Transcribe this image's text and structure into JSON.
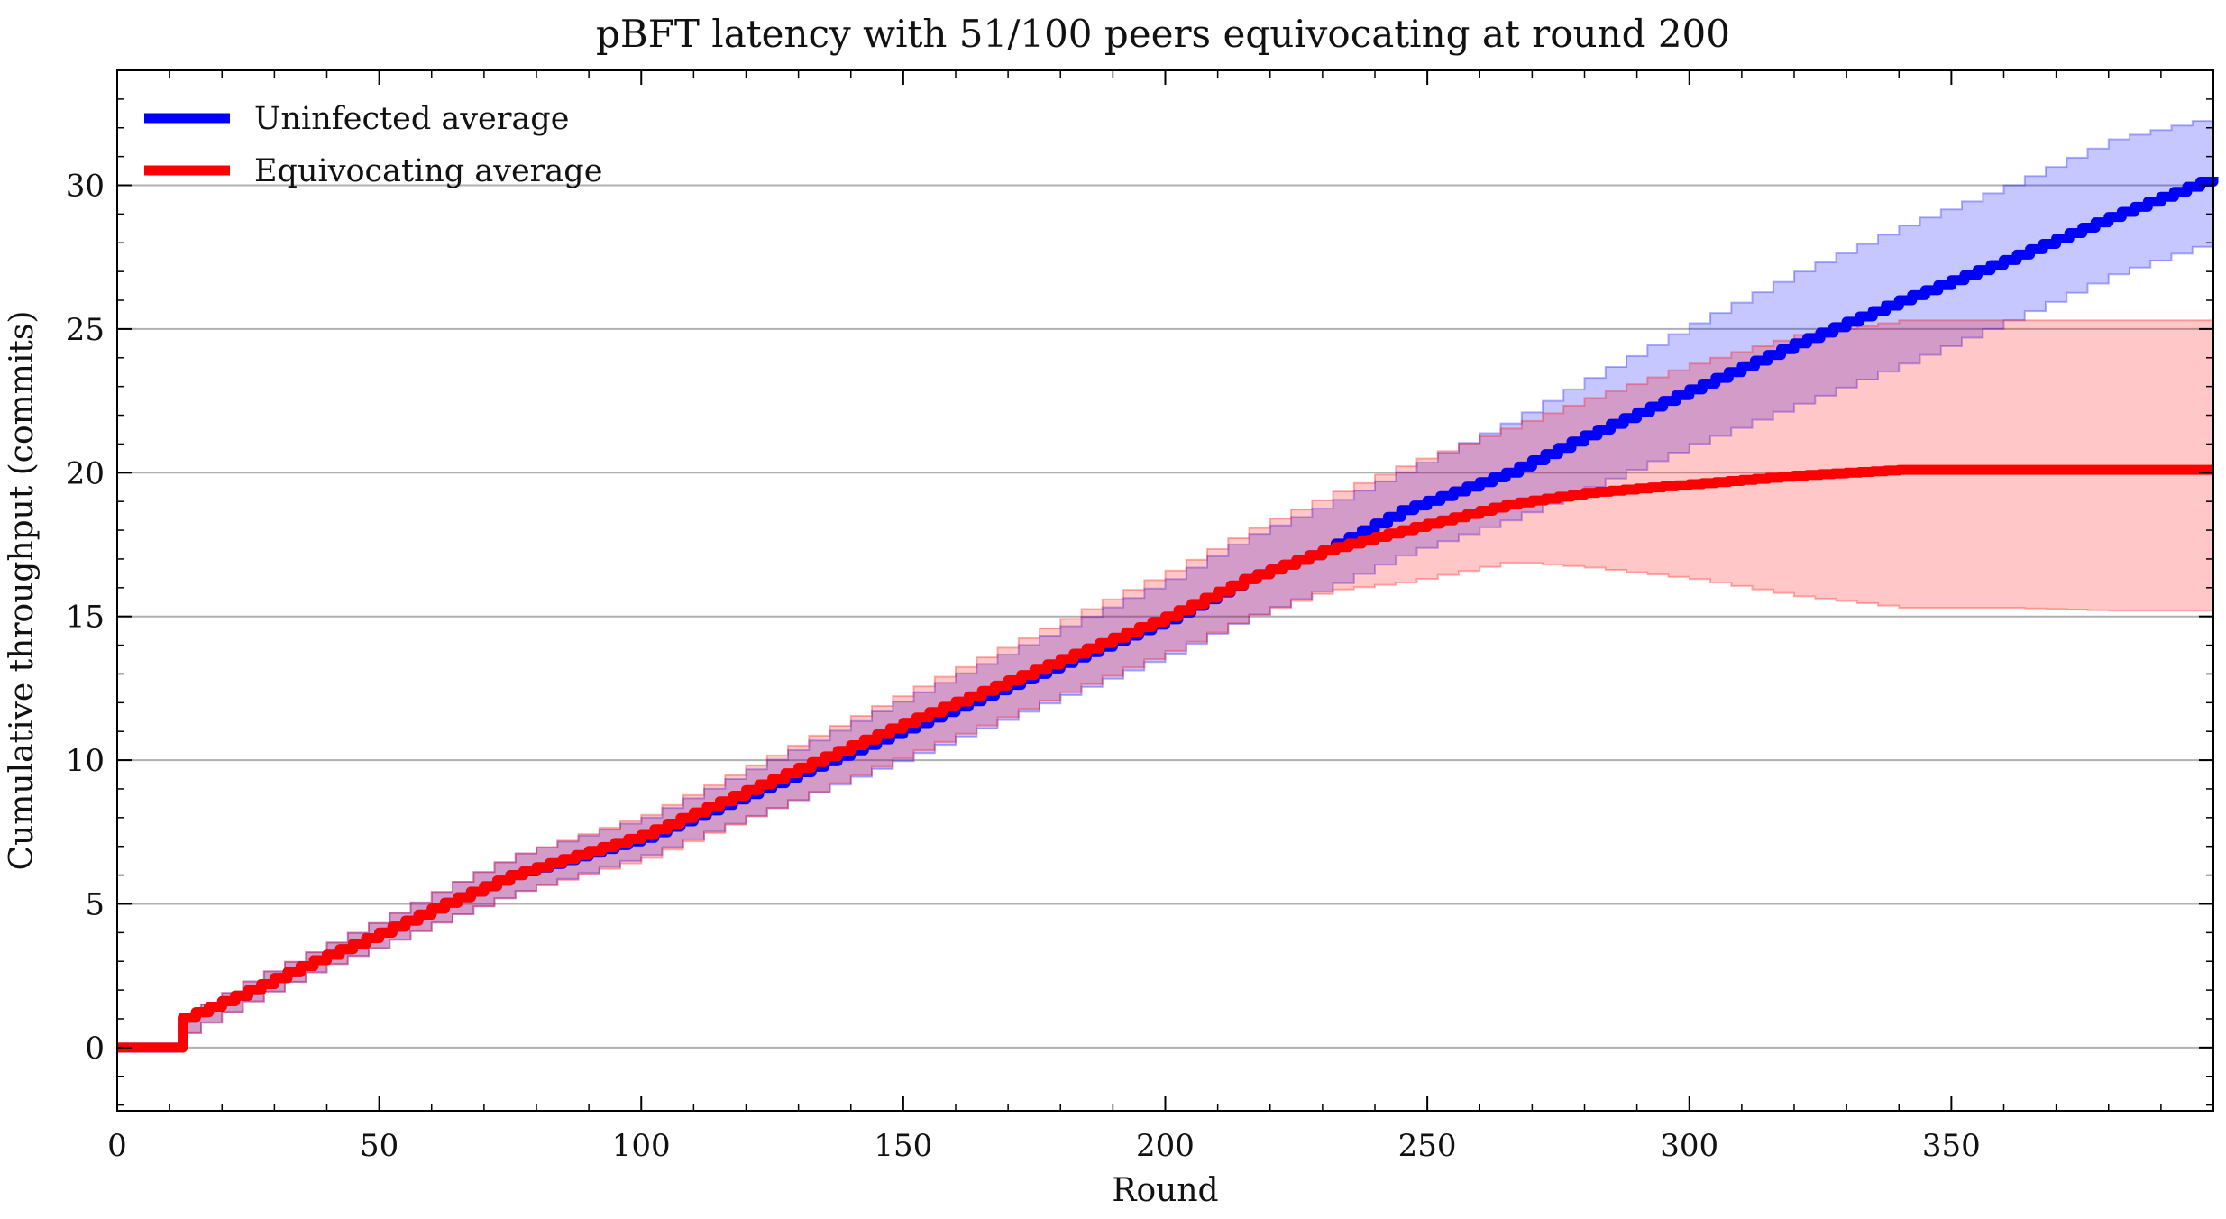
{
  "chart_data": {
    "type": "line",
    "title": "pBFT latency with 51/100 peers equivocating at round 200",
    "xlabel": "Round",
    "ylabel": "Cumulative throughput (commits)",
    "xlim": [
      0,
      400
    ],
    "ylim": [
      -2.2,
      34
    ],
    "x_ticks": [
      0,
      50,
      100,
      150,
      200,
      250,
      300,
      350
    ],
    "y_ticks": [
      0,
      5,
      10,
      15,
      20,
      25,
      30
    ],
    "grid": "horizontal",
    "legend_position": "top-left",
    "series": [
      {
        "name": "Uninfected average",
        "color": "#0000ff",
        "band_color": "#0000ff",
        "x": [
          0,
          10,
          12,
          25,
          37,
          50,
          62,
          75,
          100,
          150,
          200,
          215,
          230,
          245,
          265,
          280,
          300,
          320,
          340,
          360,
          380,
          400
        ],
        "y": [
          0,
          0,
          1,
          2,
          3,
          4,
          5,
          6,
          7.3,
          11.1,
          14.9,
          16.3,
          17.3,
          18.7,
          20.0,
          21.3,
          22.9,
          24.5,
          26.0,
          27.4,
          28.9,
          30.3
        ],
        "upper": [
          0,
          0,
          1.1,
          2.4,
          3.4,
          4.5,
          5.6,
          6.7,
          8.0,
          12.2,
          16.3,
          17.8,
          18.9,
          20.1,
          21.8,
          23.3,
          25.2,
          27.0,
          28.6,
          30.0,
          31.6,
          32.4
        ],
        "lower": [
          0,
          0,
          0.5,
          1.7,
          2.7,
          3.6,
          4.5,
          5.4,
          6.7,
          10.1,
          13.7,
          15.0,
          16.0,
          17.2,
          18.4,
          19.5,
          21.0,
          22.4,
          23.8,
          25.3,
          26.9,
          28.1
        ]
      },
      {
        "name": "Equivocating average",
        "color": "#ff0000",
        "band_color": "#ff0000",
        "x": [
          0,
          10,
          12,
          25,
          37,
          50,
          62,
          75,
          100,
          150,
          200,
          215,
          230,
          245,
          265,
          280,
          300,
          320,
          340,
          360,
          380,
          400
        ],
        "y": [
          0,
          0,
          1,
          2,
          3,
          4,
          5,
          6,
          7.4,
          11.3,
          15.0,
          16.3,
          17.3,
          18.0,
          18.9,
          19.3,
          19.6,
          19.9,
          20.1,
          20.1,
          20.1,
          20.1
        ],
        "upper": [
          0,
          0,
          1.1,
          2.4,
          3.4,
          4.5,
          5.6,
          6.7,
          8.1,
          12.4,
          16.6,
          18.0,
          19.2,
          20.3,
          21.6,
          22.6,
          23.8,
          24.8,
          25.3,
          25.3,
          25.3,
          25.3
        ],
        "lower": [
          0,
          0,
          0.5,
          1.7,
          2.7,
          3.6,
          4.5,
          5.4,
          6.6,
          10.2,
          13.8,
          15.0,
          15.9,
          16.2,
          16.9,
          16.7,
          16.3,
          15.7,
          15.3,
          15.3,
          15.2,
          15.2
        ]
      }
    ]
  }
}
